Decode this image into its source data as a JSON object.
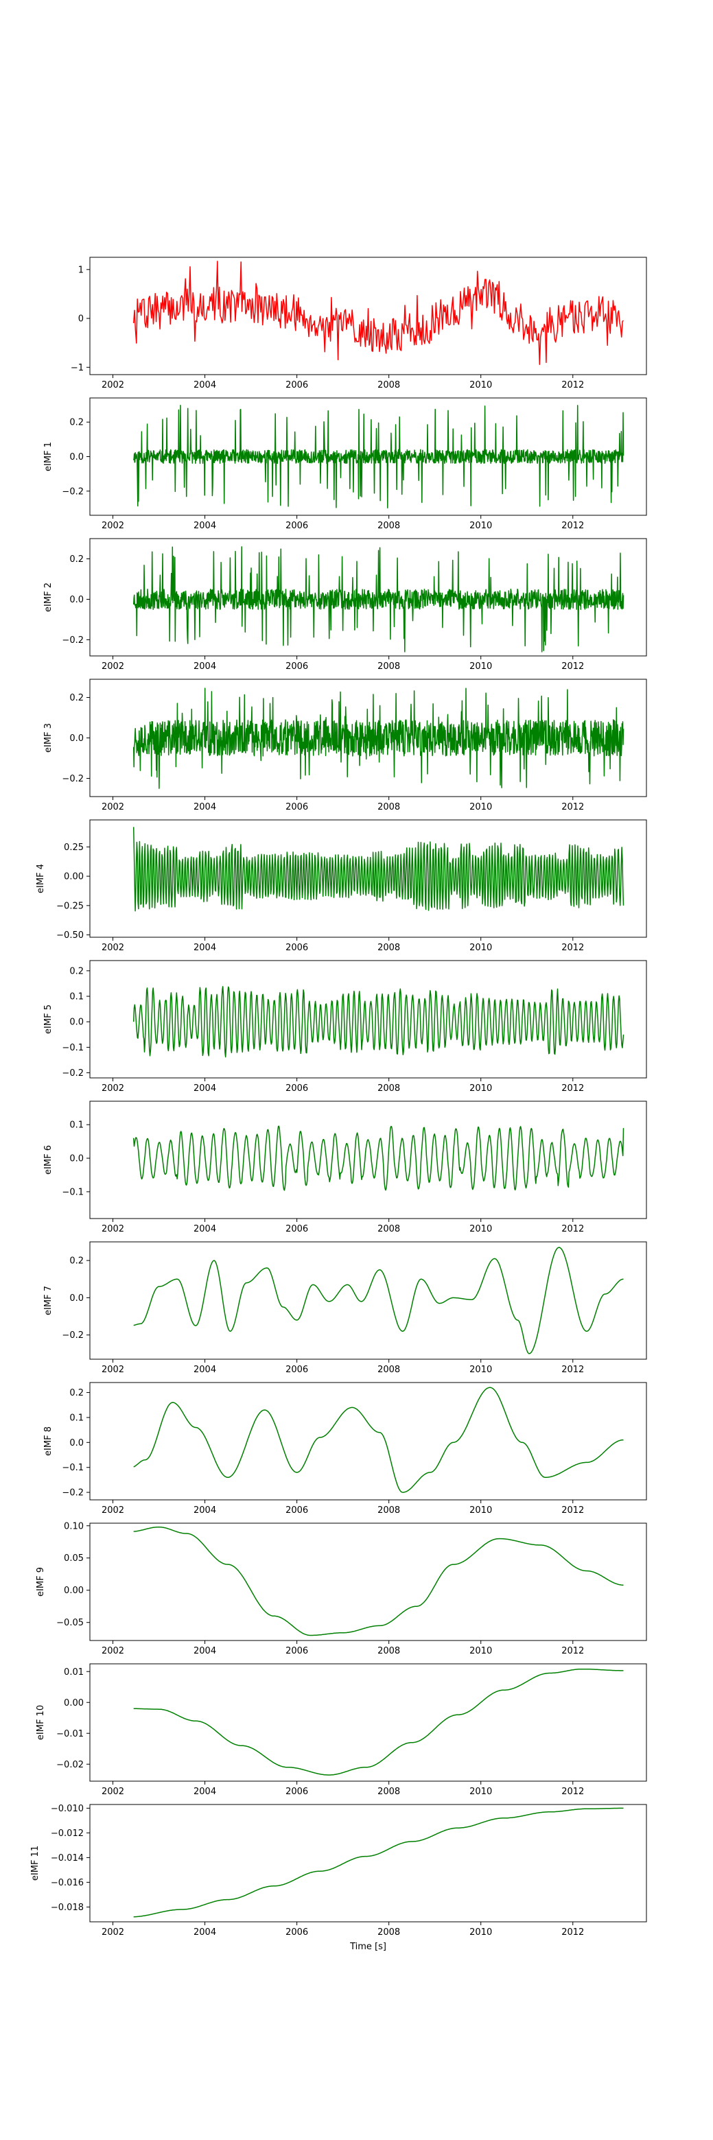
{
  "chart_data": [
    {
      "type": "line",
      "series": [
        {
          "color": "#ff0000",
          "generator": {
            "kind": "noise",
            "amp": 0.35,
            "spike": 0.85,
            "smooth": 0.45,
            "trend": [
              [
                2002.5,
                0.1
              ],
              [
                2004,
                0.3
              ],
              [
                2005.5,
                0.2
              ],
              [
                2007,
                -0.2
              ],
              [
                2008,
                -0.35
              ],
              [
                2010.3,
                0.45
              ],
              [
                2011,
                -0.2
              ],
              [
                2012.5,
                0.1
              ],
              [
                2013.1,
                0.0
              ]
            ]
          }
        }
      ],
      "xlim": [
        2001.5,
        2013.6
      ],
      "ylim": [
        -1.15,
        1.25
      ],
      "xticks": [
        2002,
        2004,
        2006,
        2008,
        2010,
        2012
      ],
      "xticklabels": [
        "2002",
        "2004",
        "2006",
        "2008",
        "2010",
        "2012"
      ],
      "yticks": [
        -1,
        0,
        1
      ],
      "yticklabels": [
        "−1",
        "0",
        "1"
      ],
      "ylabel": "",
      "xlabel": ""
    },
    {
      "type": "line",
      "series": [
        {
          "color": "#008000",
          "generator": {
            "kind": "spiky",
            "base": 0.04,
            "spike": 0.3,
            "spike_rate": 0.28,
            "seed": 11
          }
        }
      ],
      "xlim": [
        2001.5,
        2013.6
      ],
      "ylim": [
        -0.34,
        0.34
      ],
      "xticks": [
        2002,
        2004,
        2006,
        2008,
        2010,
        2012
      ],
      "xticklabels": [
        "2002",
        "2004",
        "2006",
        "2008",
        "2010",
        "2012"
      ],
      "yticks": [
        -0.2,
        0.0,
        0.2
      ],
      "yticklabels": [
        "−0.2",
        "0.0",
        "0.2"
      ],
      "ylabel": "eIMF 1",
      "xlabel": ""
    },
    {
      "type": "line",
      "series": [
        {
          "color": "#008000",
          "generator": {
            "kind": "spiky",
            "base": 0.05,
            "spike": 0.26,
            "spike_rate": 0.22,
            "seed": 23
          }
        }
      ],
      "xlim": [
        2001.5,
        2013.6
      ],
      "ylim": [
        -0.28,
        0.3
      ],
      "xticks": [
        2002,
        2004,
        2006,
        2008,
        2010,
        2012
      ],
      "xticklabels": [
        "2002",
        "2004",
        "2006",
        "2008",
        "2010",
        "2012"
      ],
      "yticks": [
        -0.2,
        0.0,
        0.2
      ],
      "yticklabels": [
        "−0.2",
        "0.0",
        "0.2"
      ],
      "ylabel": "eIMF 2",
      "xlabel": ""
    },
    {
      "type": "line",
      "series": [
        {
          "color": "#008000",
          "generator": {
            "kind": "spiky",
            "base": 0.09,
            "spike": 0.25,
            "spike_rate": 0.2,
            "seed": 37
          }
        }
      ],
      "xlim": [
        2001.5,
        2013.6
      ],
      "ylim": [
        -0.29,
        0.29
      ],
      "xticks": [
        2002,
        2004,
        2006,
        2008,
        2010,
        2012
      ],
      "xticklabels": [
        "2002",
        "2004",
        "2006",
        "2008",
        "2010",
        "2012"
      ],
      "yticks": [
        -0.2,
        0.0,
        0.2
      ],
      "yticklabels": [
        "−0.2",
        "0.0",
        "0.2"
      ],
      "ylabel": "eIMF 3",
      "xlabel": ""
    },
    {
      "type": "line",
      "series": [
        {
          "color": "#008000",
          "generator": {
            "kind": "osc",
            "freq": 16,
            "amp": 0.22,
            "var": 0.7,
            "seed": 41,
            "start": 0.42,
            "end": -0.25
          }
        }
      ],
      "xlim": [
        2001.5,
        2013.6
      ],
      "ylim": [
        -0.52,
        0.48
      ],
      "xticks": [
        2002,
        2004,
        2006,
        2008,
        2010,
        2012
      ],
      "xticklabels": [
        "2002",
        "2004",
        "2006",
        "2008",
        "2010",
        "2012"
      ],
      "yticks": [
        -0.5,
        -0.25,
        0.0,
        0.25
      ],
      "yticklabels": [
        "−0.50",
        "−0.25",
        "0.00",
        "0.25"
      ],
      "ylabel": "eIMF 4",
      "xlabel": ""
    },
    {
      "type": "line",
      "series": [
        {
          "color": "#008000",
          "generator": {
            "kind": "osc",
            "freq": 8,
            "amp": 0.1,
            "var": 0.8,
            "seed": 53,
            "start": 0.0,
            "end": -0.05
          }
        }
      ],
      "xlim": [
        2001.5,
        2013.6
      ],
      "ylim": [
        -0.22,
        0.24
      ],
      "xticks": [
        2002,
        2004,
        2006,
        2008,
        2010,
        2012
      ],
      "xticklabels": [
        "2002",
        "2004",
        "2006",
        "2008",
        "2010",
        "2012"
      ],
      "yticks": [
        -0.2,
        -0.1,
        0.0,
        0.1,
        0.2
      ],
      "yticklabels": [
        "−0.2",
        "−0.1",
        "0.0",
        "0.1",
        "0.2"
      ],
      "ylabel": "eIMF 5",
      "xlabel": ""
    },
    {
      "type": "line",
      "series": [
        {
          "color": "#008000",
          "generator": {
            "kind": "osc",
            "freq": 4.2,
            "amp": 0.07,
            "var": 0.8,
            "seed": 67,
            "start": 0.06,
            "end": 0.09
          }
        }
      ],
      "xlim": [
        2001.5,
        2013.6
      ],
      "ylim": [
        -0.18,
        0.17
      ],
      "xticks": [
        2002,
        2004,
        2006,
        2008,
        2010,
        2012
      ],
      "xticklabels": [
        "2002",
        "2004",
        "2006",
        "2008",
        "2010",
        "2012"
      ],
      "yticks": [
        -0.1,
        0.0,
        0.1
      ],
      "yticklabels": [
        "−0.1",
        "0.0",
        "0.1"
      ],
      "ylabel": "eIMF 6",
      "xlabel": ""
    },
    {
      "type": "line",
      "series": [
        {
          "color": "#008000",
          "generator": {
            "kind": "points",
            "points": [
              [
                2002.4,
                -0.15
              ],
              [
                2002.6,
                -0.14
              ],
              [
                2003.0,
                0.06
              ],
              [
                2003.4,
                0.1
              ],
              [
                2003.8,
                -0.15
              ],
              [
                2004.2,
                0.2
              ],
              [
                2004.55,
                -0.18
              ],
              [
                2004.9,
                0.08
              ],
              [
                2005.35,
                0.16
              ],
              [
                2005.7,
                -0.05
              ],
              [
                2006.0,
                -0.12
              ],
              [
                2006.35,
                0.07
              ],
              [
                2006.7,
                -0.02
              ],
              [
                2007.1,
                0.07
              ],
              [
                2007.4,
                -0.02
              ],
              [
                2007.8,
                0.15
              ],
              [
                2008.3,
                -0.18
              ],
              [
                2008.7,
                0.1
              ],
              [
                2009.1,
                -0.03
              ],
              [
                2009.4,
                0.0
              ],
              [
                2009.8,
                -0.01
              ],
              [
                2010.3,
                0.21
              ],
              [
                2010.8,
                -0.12
              ],
              [
                2011.05,
                -0.3
              ],
              [
                2011.7,
                0.27
              ],
              [
                2012.3,
                -0.18
              ],
              [
                2012.7,
                0.02
              ],
              [
                2013.1,
                0.1
              ]
            ]
          }
        }
      ],
      "xlim": [
        2001.5,
        2013.6
      ],
      "ylim": [
        -0.33,
        0.3
      ],
      "xticks": [
        2002,
        2004,
        2006,
        2008,
        2010,
        2012
      ],
      "xticklabels": [
        "2002",
        "2004",
        "2006",
        "2008",
        "2010",
        "2012"
      ],
      "yticks": [
        -0.2,
        0.0,
        0.2
      ],
      "yticklabels": [
        "−0.2",
        "0.0",
        "0.2"
      ],
      "ylabel": "eIMF 7",
      "xlabel": ""
    },
    {
      "type": "line",
      "series": [
        {
          "color": "#008000",
          "generator": {
            "kind": "points",
            "points": [
              [
                2002.4,
                -0.1
              ],
              [
                2002.7,
                -0.07
              ],
              [
                2003.3,
                0.16
              ],
              [
                2003.8,
                0.06
              ],
              [
                2004.5,
                -0.14
              ],
              [
                2005.3,
                0.13
              ],
              [
                2006.0,
                -0.12
              ],
              [
                2006.5,
                0.02
              ],
              [
                2007.2,
                0.14
              ],
              [
                2007.8,
                0.04
              ],
              [
                2008.3,
                -0.2
              ],
              [
                2008.9,
                -0.12
              ],
              [
                2009.4,
                0.0
              ],
              [
                2010.2,
                0.22
              ],
              [
                2010.9,
                0.0
              ],
              [
                2011.4,
                -0.14
              ],
              [
                2012.3,
                -0.08
              ],
              [
                2013.1,
                0.01
              ]
            ]
          }
        }
      ],
      "xlim": [
        2001.5,
        2013.6
      ],
      "ylim": [
        -0.23,
        0.24
      ],
      "xticks": [
        2002,
        2004,
        2006,
        2008,
        2010,
        2012
      ],
      "xticklabels": [
        "2002",
        "2004",
        "2006",
        "2008",
        "2010",
        "2012"
      ],
      "yticks": [
        -0.2,
        -0.1,
        0.0,
        0.1,
        0.2
      ],
      "yticklabels": [
        "−0.2",
        "−0.1",
        "0.0",
        "0.1",
        "0.2"
      ],
      "ylabel": "eIMF 8",
      "xlabel": ""
    },
    {
      "type": "line",
      "series": [
        {
          "color": "#008000",
          "generator": {
            "kind": "points",
            "points": [
              [
                2002.4,
                0.091
              ],
              [
                2003.0,
                0.098
              ],
              [
                2003.6,
                0.088
              ],
              [
                2004.5,
                0.04
              ],
              [
                2005.5,
                -0.04
              ],
              [
                2006.3,
                -0.07
              ],
              [
                2007.0,
                -0.066
              ],
              [
                2007.8,
                -0.055
              ],
              [
                2008.6,
                -0.025
              ],
              [
                2009.4,
                0.04
              ],
              [
                2010.4,
                0.08
              ],
              [
                2011.3,
                0.07
              ],
              [
                2012.3,
                0.03
              ],
              [
                2013.1,
                0.008
              ]
            ]
          }
        }
      ],
      "xlim": [
        2001.5,
        2013.6
      ],
      "ylim": [
        -0.078,
        0.104
      ],
      "xticks": [
        2002,
        2004,
        2006,
        2008,
        2010,
        2012
      ],
      "xticklabels": [
        "2002",
        "2004",
        "2006",
        "2008",
        "2010",
        "2012"
      ],
      "yticks": [
        -0.05,
        0.0,
        0.05,
        0.1
      ],
      "yticklabels": [
        "−0.05",
        "0.00",
        "0.05",
        "0.10"
      ],
      "ylabel": "eIMF 9",
      "xlabel": ""
    },
    {
      "type": "line",
      "series": [
        {
          "color": "#008000",
          "generator": {
            "kind": "points",
            "points": [
              [
                2002.4,
                -0.002
              ],
              [
                2003.0,
                -0.0022
              ],
              [
                2003.8,
                -0.006
              ],
              [
                2004.8,
                -0.014
              ],
              [
                2005.8,
                -0.021
              ],
              [
                2006.7,
                -0.0235
              ],
              [
                2007.5,
                -0.021
              ],
              [
                2008.5,
                -0.013
              ],
              [
                2009.5,
                -0.004
              ],
              [
                2010.5,
                0.004
              ],
              [
                2011.5,
                0.0095
              ],
              [
                2012.2,
                0.0108
              ],
              [
                2013.1,
                0.0103
              ]
            ]
          }
        }
      ],
      "xlim": [
        2001.5,
        2013.6
      ],
      "ylim": [
        -0.0255,
        0.0125
      ],
      "xticks": [
        2002,
        2004,
        2006,
        2008,
        2010,
        2012
      ],
      "xticklabels": [
        "2002",
        "2004",
        "2006",
        "2008",
        "2010",
        "2012"
      ],
      "yticks": [
        -0.02,
        -0.01,
        0.0,
        0.01
      ],
      "yticklabels": [
        "−0.02",
        "−0.01",
        "0.00",
        "0.01"
      ],
      "ylabel": "eIMF 10",
      "xlabel": ""
    },
    {
      "type": "line",
      "series": [
        {
          "color": "#008000",
          "generator": {
            "kind": "points",
            "points": [
              [
                2002.4,
                -0.0188
              ],
              [
                2003.5,
                -0.0182
              ],
              [
                2004.5,
                -0.0174
              ],
              [
                2005.5,
                -0.0163
              ],
              [
                2006.5,
                -0.0151
              ],
              [
                2007.5,
                -0.0139
              ],
              [
                2008.5,
                -0.0127
              ],
              [
                2009.5,
                -0.0116
              ],
              [
                2010.5,
                -0.0108
              ],
              [
                2011.5,
                -0.0103
              ],
              [
                2012.3,
                -0.01005
              ],
              [
                2013.1,
                -0.01
              ]
            ]
          }
        }
      ],
      "xlim": [
        2001.5,
        2013.6
      ],
      "ylim": [
        -0.0192,
        -0.0097
      ],
      "xticks": [
        2002,
        2004,
        2006,
        2008,
        2010,
        2012
      ],
      "xticklabels": [
        "2002",
        "2004",
        "2006",
        "2008",
        "2010",
        "2012"
      ],
      "yticks": [
        -0.018,
        -0.016,
        -0.014,
        -0.012,
        -0.01
      ],
      "yticklabels": [
        "−0.018",
        "−0.016",
        "−0.014",
        "−0.012",
        "−0.010"
      ],
      "ylabel": "eIMF 11",
      "xlabel": "Time [s]"
    }
  ]
}
